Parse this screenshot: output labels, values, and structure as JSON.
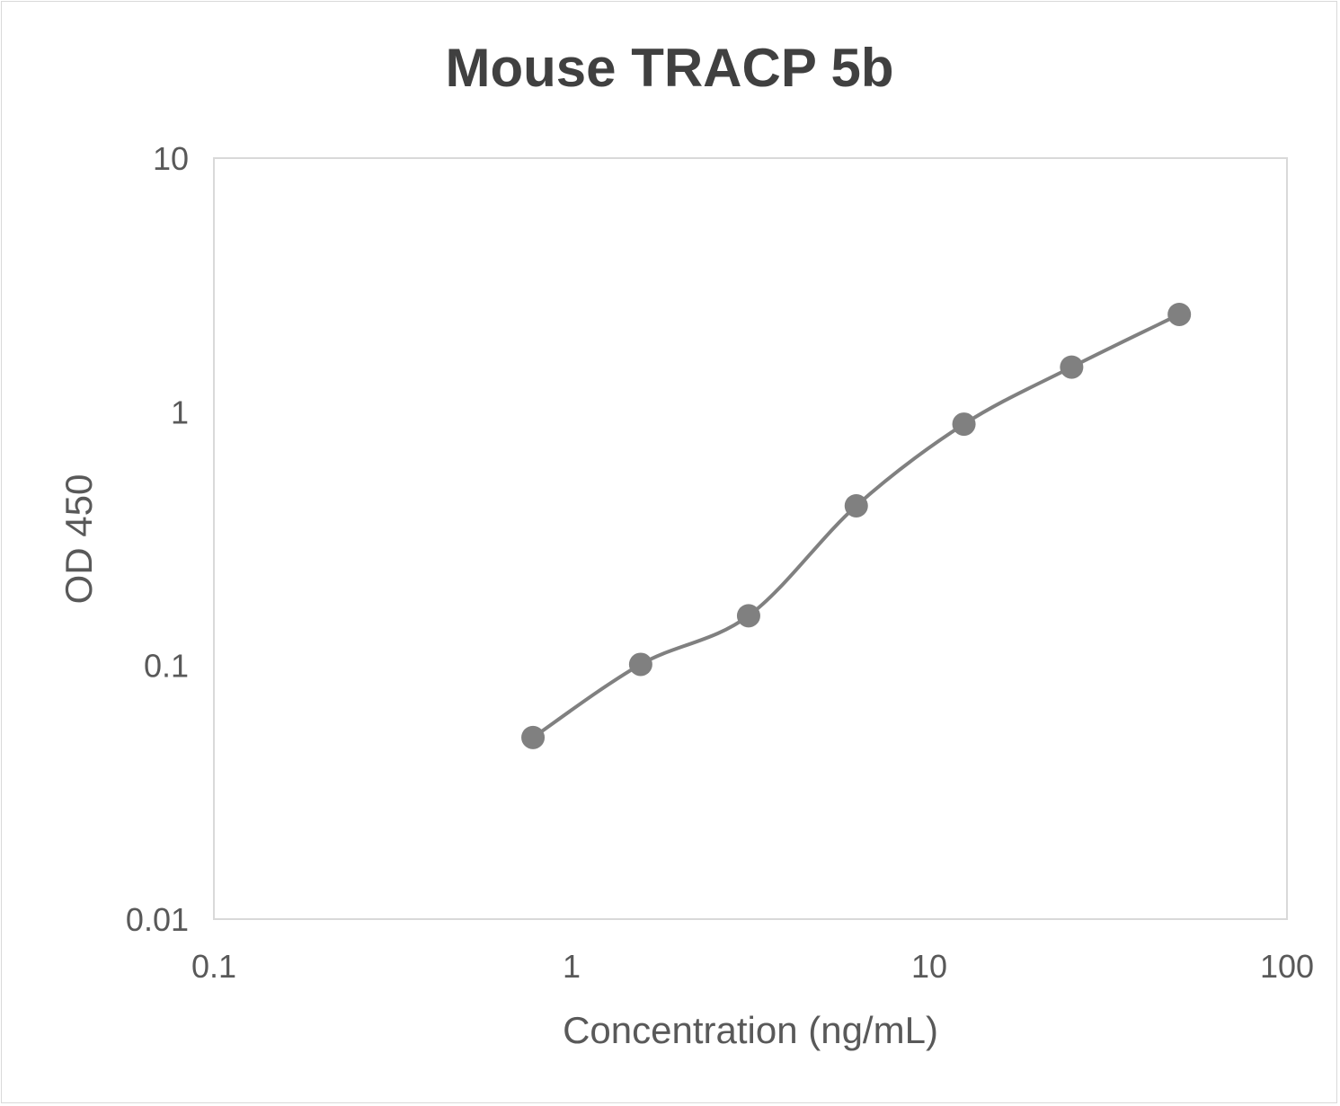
{
  "chart_data": {
    "type": "line",
    "title": "Mouse TRACP 5b",
    "xlabel": "Concentration (ng/mL)",
    "ylabel": "OD 450",
    "xscale": "log",
    "yscale": "log",
    "xlim": [
      0.1,
      100
    ],
    "ylim": [
      0.01,
      10
    ],
    "xticks": [
      "0.1",
      "1",
      "10",
      "100"
    ],
    "yticks": [
      "0.01",
      "0.1",
      "1",
      "10"
    ],
    "grid": false,
    "smooth": true,
    "markers": true,
    "series": [
      {
        "color": "#808080",
        "x": [
          0.78,
          1.56,
          3.125,
          6.25,
          12.5,
          25,
          50
        ],
        "y": [
          0.052,
          0.101,
          0.157,
          0.426,
          0.894,
          1.5,
          2.42
        ]
      }
    ]
  }
}
